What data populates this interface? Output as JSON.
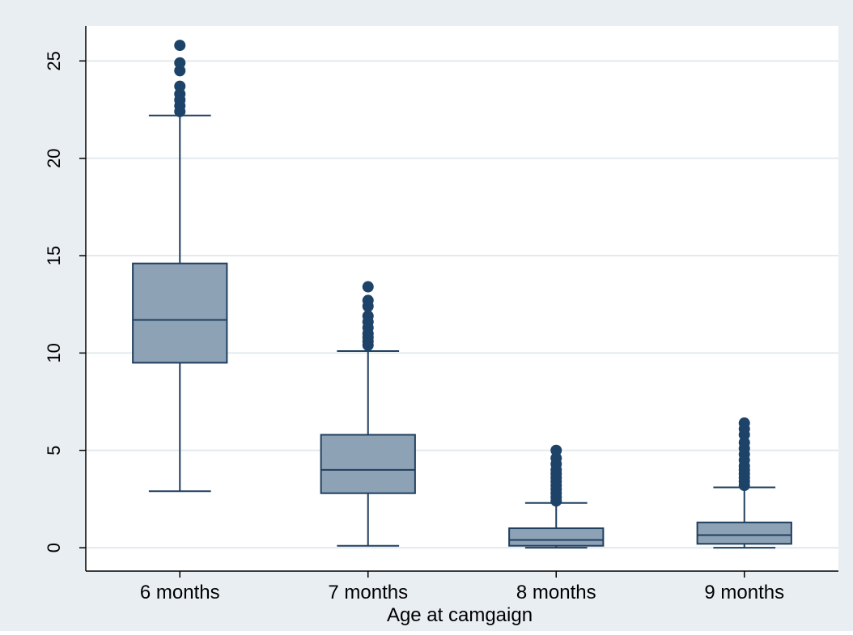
{
  "chart_data": {
    "type": "boxplot",
    "title": "",
    "xlabel": "Age at camgaign",
    "ylabel": "",
    "ylim": [
      -1.2,
      26.8
    ],
    "yticks": [
      0,
      5,
      10,
      15,
      20,
      25
    ],
    "grid": true,
    "colors": {
      "background": "#e9eef3",
      "plot_area": "#ffffff",
      "box_fill": "#8ea2b6",
      "line": "#1f3f5f",
      "outlier": "#1d4369",
      "grid": "#e3e9ee"
    },
    "categories": [
      "6 months",
      "7 months",
      "8 months",
      "9 months"
    ],
    "boxes": [
      {
        "whisker_low": 2.9,
        "q1": 9.5,
        "median": 11.7,
        "q3": 14.6,
        "whisker_high": 22.2,
        "outliers": [
          22.4,
          22.7,
          23.0,
          23.3,
          23.7,
          24.5,
          24.9,
          25.8
        ]
      },
      {
        "whisker_low": 0.1,
        "q1": 2.8,
        "median": 4.0,
        "q3": 5.8,
        "whisker_high": 10.1,
        "outliers": [
          10.4,
          10.6,
          10.8,
          11.0,
          11.3,
          11.6,
          11.9,
          12.4,
          12.7,
          13.4
        ]
      },
      {
        "whisker_low": 0.0,
        "q1": 0.1,
        "median": 0.4,
        "q3": 1.0,
        "whisker_high": 2.3,
        "outliers": [
          2.4,
          2.6,
          2.8,
          3.0,
          3.2,
          3.4,
          3.6,
          3.8,
          4.0,
          4.3,
          4.6,
          5.0
        ]
      },
      {
        "whisker_low": 0.0,
        "q1": 0.2,
        "median": 0.65,
        "q3": 1.3,
        "whisker_high": 3.1,
        "outliers": [
          3.2,
          3.4,
          3.6,
          3.8,
          4.0,
          4.2,
          4.5,
          4.8,
          5.1,
          5.4,
          5.8,
          6.1,
          6.4
        ]
      }
    ]
  }
}
